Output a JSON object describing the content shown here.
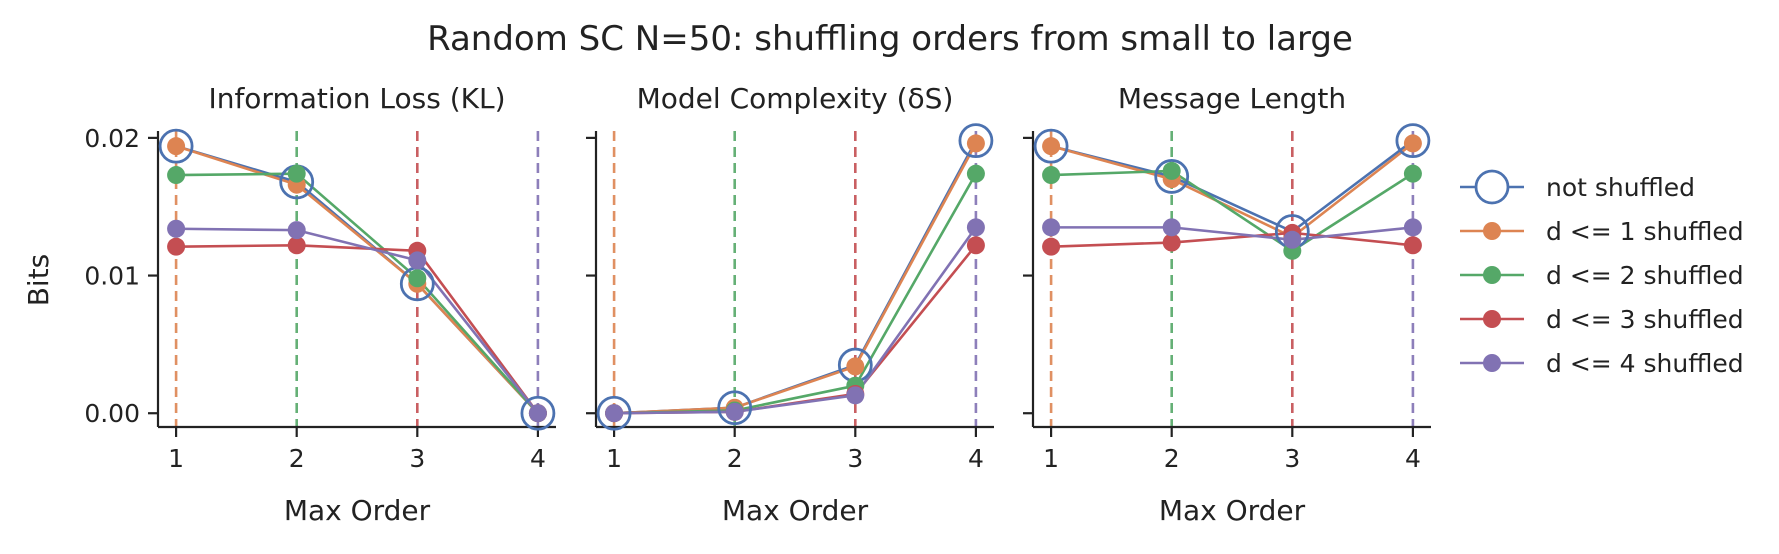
{
  "figure_title": "Random SC N=50: shuffling orders from small to large",
  "chart_data": {
    "type": "line",
    "shared_ylabel": "Bits",
    "x": [
      1,
      2,
      3,
      4
    ],
    "xticks": [
      "1",
      "2",
      "3",
      "4"
    ],
    "xlim": [
      0.85,
      4.15
    ],
    "ylim": [
      -0.001,
      0.0205
    ],
    "yticks": [
      0.0,
      0.01,
      0.02
    ],
    "ytick_labels": [
      "0.00",
      "0.01",
      "0.02"
    ],
    "grid": false,
    "legend_position": "right",
    "vlines": [
      {
        "x": 1,
        "color": "#dd8452"
      },
      {
        "x": 2,
        "color": "#55a868"
      },
      {
        "x": 3,
        "color": "#c44e52"
      },
      {
        "x": 4,
        "color": "#8172b3"
      }
    ],
    "series_style": [
      {
        "name": "not shuffled",
        "color": "#4c72b0",
        "marker": "open-circle"
      },
      {
        "name": "d <= 1 shuffled",
        "color": "#dd8452",
        "marker": "filled-circle"
      },
      {
        "name": "d <= 2 shuffled",
        "color": "#55a868",
        "marker": "filled-circle"
      },
      {
        "name": "d <= 3 shuffled",
        "color": "#c44e52",
        "marker": "filled-circle"
      },
      {
        "name": "d <= 4 shuffled",
        "color": "#8172b3",
        "marker": "filled-circle"
      }
    ],
    "panels": [
      {
        "title": "Information Loss (KL)",
        "xlabel": "Max Order",
        "series": [
          {
            "name": "not shuffled",
            "values": [
              0.0194,
              0.0168,
              0.0094,
              0.0
            ]
          },
          {
            "name": "d <= 1 shuffled",
            "values": [
              0.0194,
              0.0166,
              0.0094,
              0.0
            ]
          },
          {
            "name": "d <= 2 shuffled",
            "values": [
              0.0173,
              0.0174,
              0.0098,
              0.0
            ]
          },
          {
            "name": "d <= 3 shuffled",
            "values": [
              0.0121,
              0.0122,
              0.0118,
              0.0
            ]
          },
          {
            "name": "d <= 4 shuffled",
            "values": [
              0.0134,
              0.0133,
              0.0111,
              0.0
            ]
          }
        ]
      },
      {
        "title": "Model Complexity (δS)",
        "xlabel": "Max Order",
        "series": [
          {
            "name": "not shuffled",
            "values": [
              0.0,
              0.0004,
              0.0035,
              0.0198
            ]
          },
          {
            "name": "d <= 1 shuffled",
            "values": [
              0.0,
              0.0004,
              0.0034,
              0.0196
            ]
          },
          {
            "name": "d <= 2 shuffled",
            "values": [
              0.0,
              0.0002,
              0.002,
              0.0174
            ]
          },
          {
            "name": "d <= 3 shuffled",
            "values": [
              0.0,
              0.0001,
              0.0014,
              0.0122
            ]
          },
          {
            "name": "d <= 4 shuffled",
            "values": [
              0.0,
              0.0001,
              0.0013,
              0.0135
            ]
          }
        ]
      },
      {
        "title": "Message Length",
        "xlabel": "Max Order",
        "series": [
          {
            "name": "not shuffled",
            "values": [
              0.0194,
              0.0172,
              0.0132,
              0.0198
            ]
          },
          {
            "name": "d <= 1 shuffled",
            "values": [
              0.0194,
              0.017,
              0.0128,
              0.0196
            ]
          },
          {
            "name": "d <= 2 shuffled",
            "values": [
              0.0173,
              0.0176,
              0.0118,
              0.0174
            ]
          },
          {
            "name": "d <= 3 shuffled",
            "values": [
              0.0121,
              0.0124,
              0.0131,
              0.0122
            ]
          },
          {
            "name": "d <= 4 shuffled",
            "values": [
              0.0135,
              0.0135,
              0.0126,
              0.0135
            ]
          }
        ]
      }
    ]
  }
}
